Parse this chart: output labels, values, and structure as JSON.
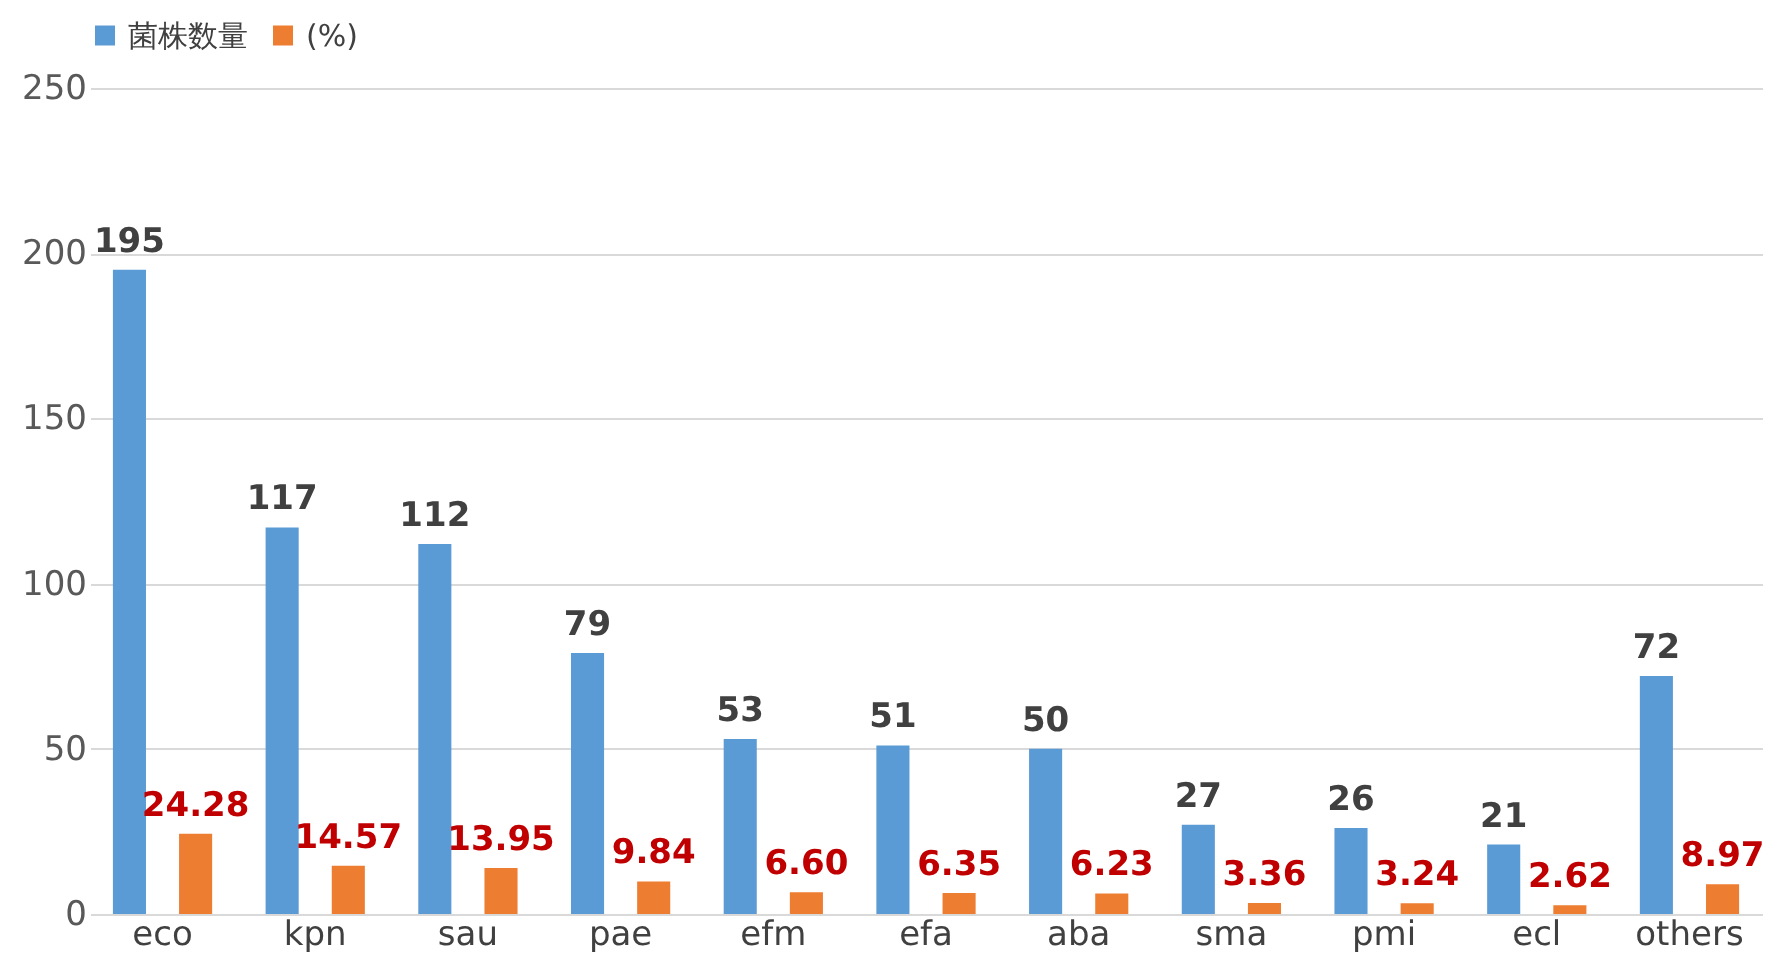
{
  "chart_data": {
    "type": "bar",
    "categories": [
      "eco",
      "kpn",
      "sau",
      "pae",
      "efm",
      "efa",
      "aba",
      "sma",
      "pmi",
      "ecl",
      "others"
    ],
    "series": [
      {
        "name": "菌株数量",
        "color": "#5b9bd5",
        "values": [
          195,
          117,
          112,
          79,
          53,
          51,
          50,
          27,
          26,
          21,
          72
        ],
        "value_labels": [
          "195",
          "117",
          "112",
          "79",
          "53",
          "51",
          "50",
          "27",
          "26",
          "21",
          "72"
        ]
      },
      {
        "name": "(%)",
        "color": "#ed7d31",
        "values": [
          24.28,
          14.57,
          13.95,
          9.84,
          6.6,
          6.35,
          6.23,
          3.36,
          3.24,
          2.62,
          8.97
        ],
        "value_labels": [
          "24.28",
          "14.57",
          "13.95",
          "9.84",
          "6.60",
          "6.35",
          "6.23",
          "3.36",
          "3.24",
          "2.62",
          "8.97"
        ]
      }
    ],
    "ylim": [
      0,
      250
    ],
    "yticks": [
      0,
      50,
      100,
      150,
      200,
      250
    ],
    "grid": "y",
    "legend": "top"
  }
}
